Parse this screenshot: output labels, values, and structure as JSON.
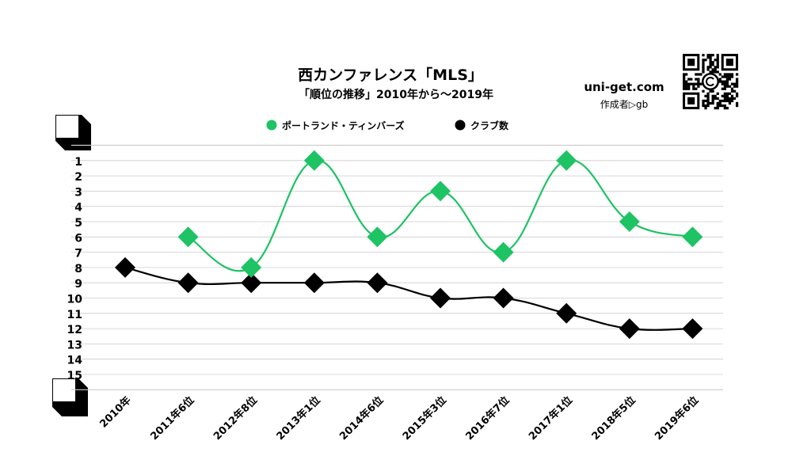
{
  "header": {
    "title": "西カンファレンス「MLS」",
    "subtitle": "「順位の推移」2010年から～2019年",
    "site": "uni-get.com",
    "author": "作成者▷gb"
  },
  "colors": {
    "portland": "#1ec364",
    "clubs": "#000000",
    "grid": "#cccccc"
  },
  "chart_data": {
    "type": "line",
    "title": "西カンファレンス「MLS」",
    "subtitle": "「順位の推移」2010年から～2019年",
    "categories": [
      "2010年",
      "2011年6位",
      "2012年8位",
      "2013年1位",
      "2014年6位",
      "2015年3位",
      "2016年7位",
      "2017年1位",
      "2018年5位",
      "2019年6位"
    ],
    "y_ticks": [
      "1",
      "2",
      "3",
      "4",
      "5",
      "6",
      "7",
      "8",
      "9",
      "10",
      "11",
      "12",
      "13",
      "14",
      "15"
    ],
    "ylim": [
      1,
      15
    ],
    "y_inverted": true,
    "grid": true,
    "legend_position": "top-center",
    "series": [
      {
        "name": "ポートランド・ティンバーズ",
        "color": "#1ec364",
        "values": [
          null,
          6,
          8,
          1,
          6,
          3,
          7,
          1,
          5,
          6
        ]
      },
      {
        "name": "クラブ数",
        "color": "#000000",
        "values": [
          8,
          9,
          9,
          9,
          9,
          10,
          10,
          11,
          12,
          12
        ]
      }
    ]
  }
}
